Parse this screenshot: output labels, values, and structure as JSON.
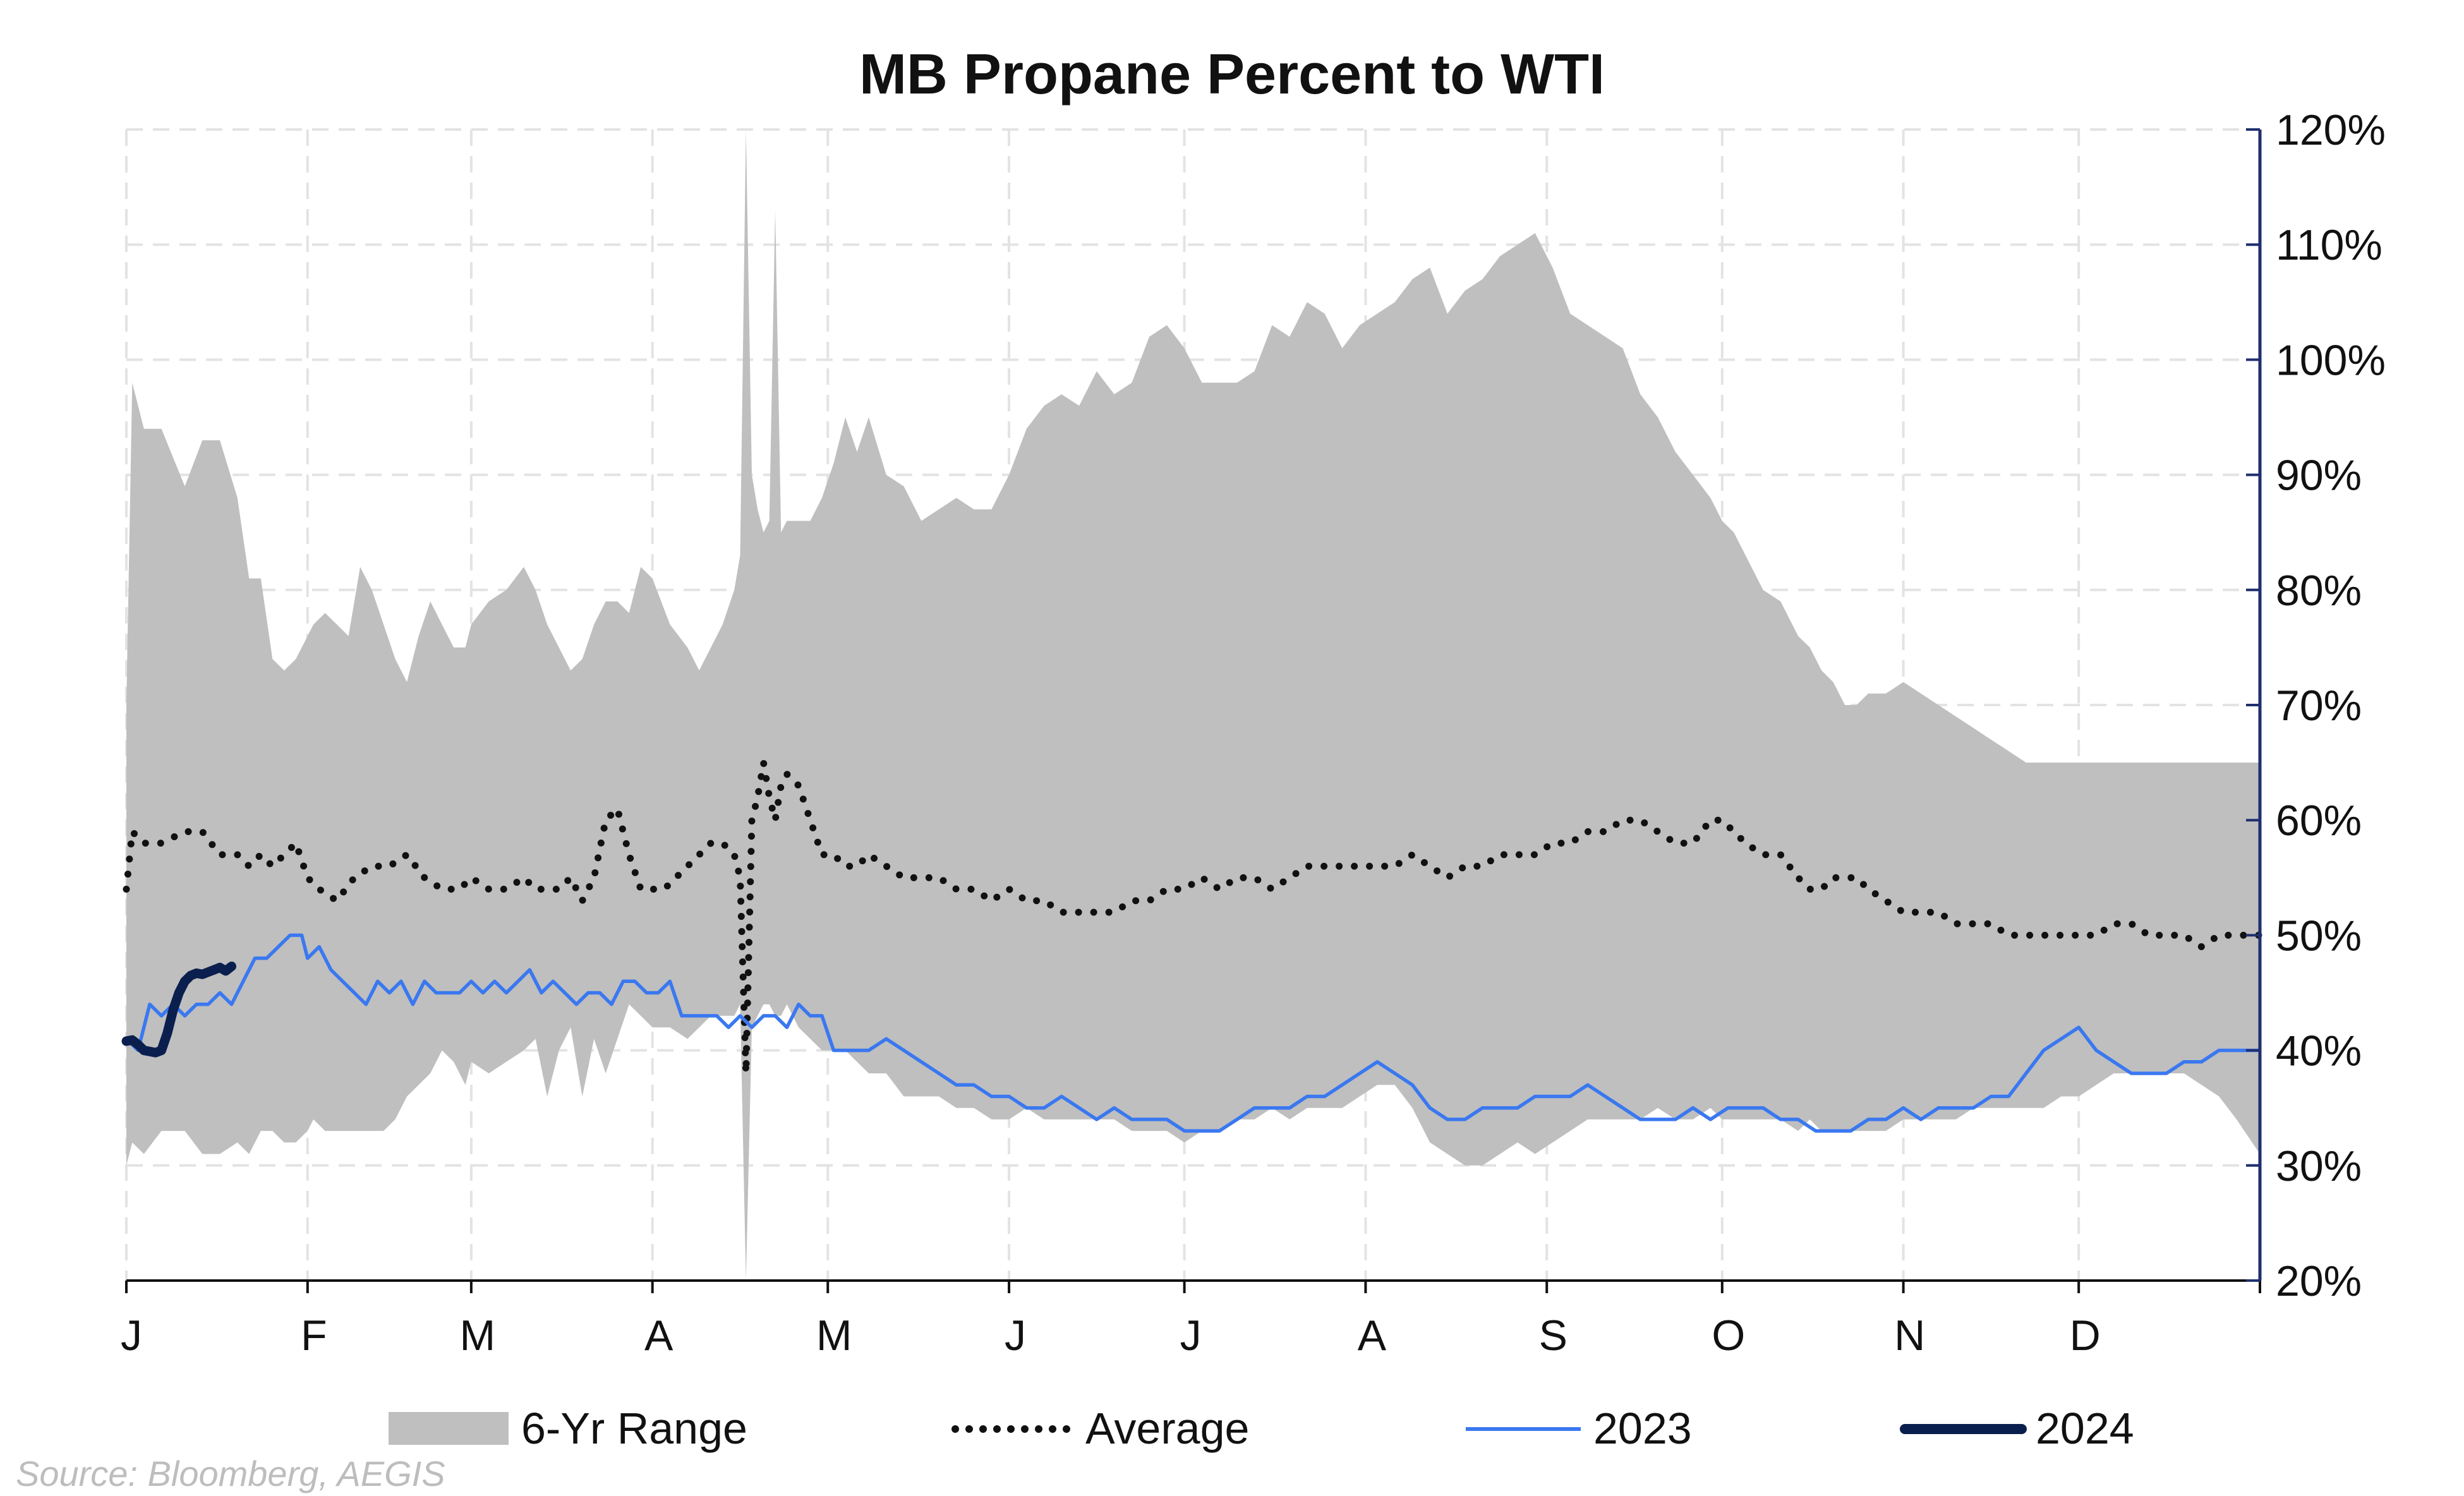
{
  "chart_data": {
    "type": "area",
    "title": "MB Propane Percent to WTI",
    "source": "Source: Bloomberg, AEGIS",
    "y_axis": {
      "side": "right",
      "min": 20,
      "max": 120,
      "step": 10,
      "tick_labels": [
        "20%",
        "30%",
        "40%",
        "50%",
        "60%",
        "70%",
        "80%",
        "90%",
        "100%",
        "110%",
        "120%"
      ]
    },
    "x_axis": {
      "min": 0,
      "max": 365,
      "month_labels": [
        "J",
        "F",
        "M",
        "A",
        "M",
        "J",
        "J",
        "A",
        "S",
        "O",
        "N",
        "D"
      ],
      "month_starts": [
        0,
        31,
        59,
        90,
        120,
        151,
        181,
        212,
        243,
        273,
        304,
        334
      ]
    },
    "grid": "dashed",
    "legend_position": "bottom",
    "colors": {
      "range": "#bfbfbf",
      "average": "#111111",
      "y2023": "#3a78f0",
      "y2024": "#0b1f4e",
      "axis": "#1f2f6e",
      "grid": "#e3e3e3"
    },
    "series": [
      {
        "name": "6-Yr Range",
        "kind": "band",
        "x": [
          0,
          1,
          3,
          6,
          10,
          13,
          16,
          19,
          21,
          23,
          25,
          27,
          29,
          31,
          32,
          34,
          36,
          38,
          40,
          42,
          44,
          46,
          48,
          50,
          52,
          54,
          56,
          58,
          59,
          62,
          65,
          68,
          70,
          72,
          74,
          76,
          78,
          80,
          82,
          84,
          86,
          88,
          90,
          93,
          96,
          98,
          100,
          102,
          104,
          105,
          106,
          107,
          108,
          109,
          110,
          111,
          112,
          113,
          115,
          117,
          119,
          121,
          123,
          125,
          127,
          130,
          133,
          136,
          139,
          142,
          145,
          148,
          151,
          154,
          157,
          160,
          163,
          166,
          169,
          172,
          175,
          178,
          181,
          184,
          187,
          190,
          193,
          196,
          199,
          202,
          205,
          208,
          211,
          214,
          217,
          220,
          223,
          226,
          229,
          232,
          235,
          238,
          241,
          244,
          247,
          250,
          253,
          256,
          259,
          262,
          265,
          268,
          271,
          273,
          275,
          277,
          280,
          283,
          286,
          288,
          290,
          292,
          294,
          296,
          298,
          301,
          304,
          307,
          310,
          313,
          316,
          319,
          322,
          325,
          328,
          331,
          334,
          337,
          340,
          343,
          346,
          349,
          352,
          355,
          358,
          361,
          365
        ],
        "low": [
          30,
          32,
          31,
          33,
          33,
          31,
          31,
          32,
          31,
          33,
          33,
          32,
          32,
          33,
          34,
          33,
          33,
          33,
          33,
          33,
          33,
          34,
          36,
          37,
          38,
          40,
          39,
          37,
          39,
          38,
          39,
          40,
          41,
          36,
          40,
          42,
          36,
          41,
          38,
          41,
          44,
          43,
          42,
          42,
          41,
          42,
          43,
          43,
          43,
          44,
          20,
          42,
          43,
          44,
          44,
          43,
          43,
          44,
          42,
          41,
          40,
          40,
          40,
          39,
          38,
          38,
          36,
          36,
          36,
          35,
          35,
          34,
          34,
          35,
          34,
          34,
          34,
          34,
          34,
          33,
          33,
          33,
          32,
          33,
          33,
          34,
          34,
          35,
          34,
          35,
          35,
          35,
          36,
          37,
          37,
          35,
          32,
          31,
          30,
          30,
          31,
          32,
          31,
          32,
          33,
          34,
          34,
          34,
          34,
          35,
          34,
          34,
          35,
          34,
          34,
          34,
          34,
          34,
          33,
          34,
          33,
          33,
          33,
          33,
          33,
          33,
          34,
          34,
          34,
          34,
          35,
          35,
          35,
          35,
          35,
          36,
          36,
          37,
          38,
          38,
          38,
          38,
          38,
          37,
          36,
          34,
          31
        ],
        "high": [
          70,
          98,
          94,
          94,
          89,
          93,
          93,
          88,
          81,
          81,
          74,
          73,
          74,
          76,
          77,
          78,
          77,
          76,
          82,
          80,
          77,
          74,
          72,
          76,
          79,
          77,
          75,
          75,
          77,
          79,
          80,
          82,
          80,
          77,
          75,
          73,
          74,
          77,
          79,
          79,
          78,
          82,
          81,
          77,
          75,
          73,
          75,
          77,
          80,
          83,
          120,
          90,
          87,
          85,
          86,
          113,
          85,
          86,
          86,
          86,
          88,
          91,
          95,
          92,
          95,
          90,
          89,
          86,
          87,
          88,
          87,
          87,
          90,
          94,
          96,
          97,
          96,
          99,
          97,
          98,
          102,
          103,
          101,
          98,
          98,
          98,
          99,
          103,
          102,
          105,
          104,
          101,
          103,
          104,
          105,
          107,
          108,
          104,
          106,
          107,
          109,
          110,
          111,
          108,
          104,
          103,
          102,
          101,
          97,
          95,
          92,
          90,
          88,
          86,
          85,
          83,
          80,
          79,
          76,
          75,
          73,
          72,
          70,
          70,
          71,
          71,
          72,
          71,
          70,
          69,
          68,
          67,
          66,
          65,
          65,
          65,
          65,
          65,
          65,
          65,
          65,
          65,
          65,
          65,
          65,
          65,
          65
        ],
        "spikes_note": ""
      },
      {
        "name": "Average",
        "kind": "dotted",
        "x": [
          0,
          1,
          3,
          6,
          10,
          13,
          16,
          19,
          21,
          23,
          25,
          27,
          29,
          31,
          33,
          36,
          39,
          42,
          45,
          48,
          51,
          54,
          57,
          59,
          62,
          65,
          68,
          70,
          72,
          74,
          76,
          78,
          80,
          82,
          84,
          86,
          88,
          90,
          92,
          94,
          96,
          98,
          100,
          102,
          104,
          105,
          106,
          107,
          108,
          109,
          110,
          111,
          112,
          113,
          115,
          117,
          119,
          121,
          123,
          125,
          127,
          130,
          133,
          136,
          139,
          142,
          145,
          148,
          151,
          154,
          157,
          160,
          163,
          166,
          169,
          172,
          175,
          178,
          181,
          184,
          187,
          190,
          193,
          196,
          199,
          202,
          205,
          208,
          211,
          214,
          217,
          220,
          223,
          226,
          229,
          232,
          235,
          238,
          241,
          244,
          247,
          250,
          253,
          256,
          259,
          262,
          265,
          268,
          271,
          273,
          275,
          277,
          280,
          283,
          286,
          288,
          290,
          292,
          294,
          296,
          298,
          301,
          304,
          307,
          310,
          313,
          316,
          319,
          322,
          325,
          328,
          331,
          334,
          337,
          340,
          343,
          346,
          349,
          352,
          355,
          358,
          361,
          365
        ],
        "values": [
          54,
          59,
          58,
          58,
          59,
          59,
          57,
          57,
          56,
          57,
          56,
          57,
          58,
          55,
          54,
          53,
          55,
          56,
          56,
          57,
          55,
          54,
          54,
          55,
          54,
          54,
          55,
          54,
          54,
          54,
          55,
          53,
          55,
          60,
          61,
          57,
          54,
          54,
          54,
          55,
          56,
          57,
          58,
          58,
          57,
          55,
          38,
          60,
          62,
          65,
          62,
          60,
          63,
          64,
          63,
          60,
          57,
          57,
          56,
          56,
          57,
          56,
          55,
          55,
          55,
          54,
          54,
          53,
          54,
          53,
          53,
          52,
          52,
          52,
          52,
          53,
          53,
          54,
          54,
          55,
          54,
          55,
          55,
          54,
          55,
          56,
          56,
          56,
          56,
          56,
          56,
          57,
          56,
          55,
          56,
          56,
          57,
          57,
          57,
          58,
          58,
          59,
          59,
          60,
          60,
          59,
          58,
          58,
          60,
          60,
          59,
          58,
          57,
          57,
          55,
          54,
          54,
          55,
          55,
          55,
          54,
          53,
          52,
          52,
          52,
          51,
          51,
          51,
          50,
          50,
          50,
          50,
          50,
          50,
          51,
          51,
          50,
          50,
          50,
          49,
          50,
          50,
          50
        ],
        "spikes_note": ""
      },
      {
        "name": "2023",
        "kind": "line",
        "x": [
          0,
          2,
          4,
          6,
          8,
          10,
          12,
          14,
          16,
          18,
          20,
          22,
          24,
          26,
          28,
          30,
          31,
          33,
          35,
          37,
          39,
          41,
          43,
          45,
          47,
          49,
          51,
          53,
          55,
          57,
          59,
          61,
          63,
          65,
          67,
          69,
          71,
          73,
          75,
          77,
          79,
          81,
          83,
          85,
          87,
          89,
          91,
          93,
          95,
          97,
          99,
          101,
          103,
          105,
          107,
          109,
          111,
          113,
          115,
          117,
          119,
          121,
          124,
          127,
          130,
          133,
          136,
          139,
          142,
          145,
          148,
          151,
          154,
          157,
          160,
          163,
          166,
          169,
          172,
          175,
          178,
          181,
          184,
          187,
          190,
          193,
          196,
          199,
          202,
          205,
          208,
          211,
          214,
          217,
          220,
          223,
          226,
          229,
          232,
          235,
          238,
          241,
          244,
          247,
          250,
          253,
          256,
          259,
          262,
          265,
          268,
          271,
          274,
          277,
          280,
          283,
          286,
          289,
          292,
          295,
          298,
          301,
          304,
          307,
          310,
          313,
          316,
          319,
          322,
          325,
          328,
          331,
          334,
          337,
          340,
          343,
          346,
          349,
          352,
          355,
          358,
          361,
          365
        ],
        "values": [
          41,
          40,
          44,
          43,
          44,
          43,
          44,
          44,
          45,
          44,
          46,
          48,
          48,
          49,
          50,
          50,
          48,
          49,
          47,
          46,
          45,
          44,
          46,
          45,
          46,
          44,
          46,
          45,
          45,
          45,
          46,
          45,
          46,
          45,
          46,
          47,
          45,
          46,
          45,
          44,
          45,
          45,
          44,
          46,
          46,
          45,
          45,
          46,
          43,
          43,
          43,
          43,
          42,
          43,
          42,
          43,
          43,
          42,
          44,
          43,
          43,
          40,
          40,
          40,
          41,
          40,
          39,
          38,
          37,
          37,
          36,
          36,
          35,
          35,
          36,
          35,
          34,
          35,
          34,
          34,
          34,
          33,
          33,
          33,
          34,
          35,
          35,
          35,
          36,
          36,
          37,
          38,
          39,
          38,
          37,
          35,
          34,
          34,
          35,
          35,
          35,
          36,
          36,
          36,
          37,
          36,
          35,
          34,
          34,
          34,
          35,
          34,
          35,
          35,
          35,
          34,
          34,
          33,
          33,
          33,
          34,
          34,
          35,
          34,
          35,
          35,
          35,
          36,
          36,
          38,
          40,
          41,
          42,
          40,
          39,
          38,
          38,
          38,
          39,
          39,
          40,
          40,
          40
        ],
        "spikes_note": ""
      },
      {
        "name": "2024",
        "kind": "line-thick",
        "x": [
          0,
          1,
          2,
          3,
          4,
          5,
          6,
          7,
          8,
          9,
          10,
          11,
          12,
          13,
          14,
          15,
          16,
          17,
          18
        ],
        "values": [
          40.8,
          40.9,
          40.5,
          40.0,
          39.9,
          39.8,
          40.0,
          41.5,
          43.5,
          45.0,
          46.0,
          46.5,
          46.7,
          46.6,
          46.8,
          47.0,
          47.2,
          46.9,
          47.3
        ]
      }
    ]
  },
  "legend": [
    {
      "label": "6-Yr Range",
      "swatch": "band"
    },
    {
      "label": "Average",
      "swatch": "dotted"
    },
    {
      "label": "2023",
      "swatch": "line"
    },
    {
      "label": "2024",
      "swatch": "line-thick"
    }
  ]
}
